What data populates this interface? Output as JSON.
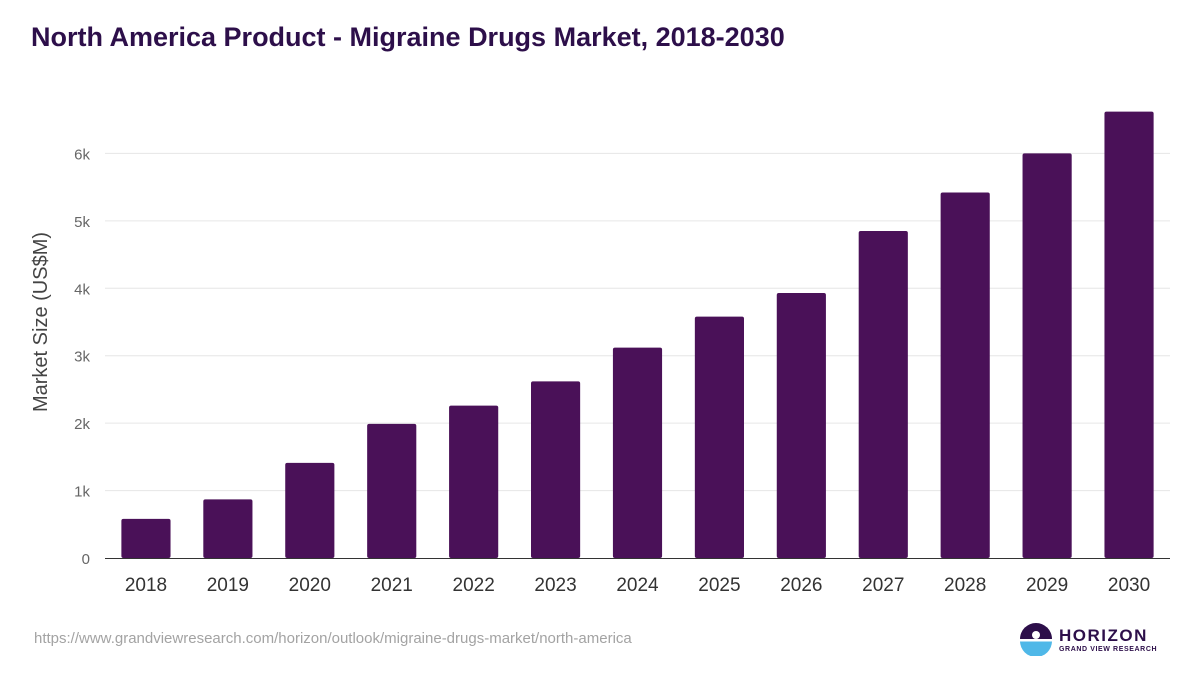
{
  "chart_data": {
    "type": "bar",
    "title": "North America Product - Migraine Drugs Market, 2018-2030",
    "xlabel": "",
    "ylabel": "Market Size (US$M)",
    "categories": [
      "2018",
      "2019",
      "2020",
      "2021",
      "2022",
      "2023",
      "2024",
      "2025",
      "2026",
      "2027",
      "2028",
      "2029",
      "2030"
    ],
    "values": [
      580,
      870,
      1410,
      1990,
      2260,
      2620,
      3120,
      3580,
      3930,
      4850,
      5420,
      6000,
      6620
    ],
    "ylim": [
      0,
      7000
    ],
    "yticks": [
      0,
      1000,
      2000,
      3000,
      4000,
      5000,
      6000
    ],
    "ytick_labels": [
      "0",
      "1k",
      "2k",
      "3k",
      "4k",
      "5k",
      "6k"
    ],
    "grid": true,
    "legend": "none",
    "bar_color": "#4a1158"
  },
  "footer": {
    "source_url": "https://www.grandviewresearch.com/horizon/outlook/migraine-drugs-market/north-america"
  },
  "brand": {
    "name": "HORIZON",
    "subtitle": "GRAND VIEW RESEARCH",
    "logo_icon": "horizon-sun-icon",
    "accent": "#2d0f4a",
    "secondary": "#4fb8e8"
  }
}
